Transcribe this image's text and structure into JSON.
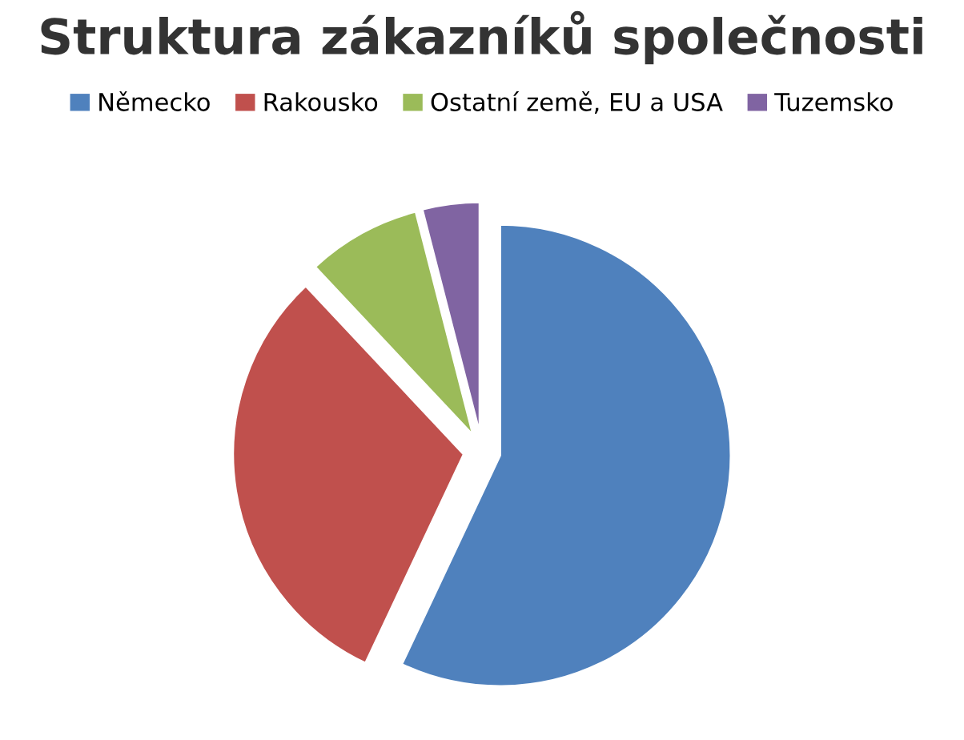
{
  "chart_data": {
    "type": "pie",
    "title": "Struktura zákazníků společnosti",
    "categories": [
      "Německo",
      "Rakousko",
      "Ostatní země, EU a USA",
      "Tuzemsko"
    ],
    "values": [
      57,
      31,
      8,
      4
    ],
    "colors": [
      "#4f81bd",
      "#c0504d",
      "#9bbb59",
      "#8064a2"
    ],
    "legend": "top"
  }
}
